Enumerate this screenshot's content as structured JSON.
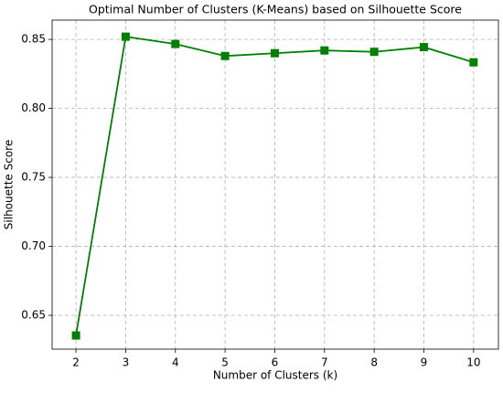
{
  "chart_data": {
    "type": "line",
    "title": "Optimal Number of Clusters (K-Means) based on Silhouette Score",
    "xlabel": "Number of Clusters (k)",
    "ylabel": "Silhouette Score",
    "x": [
      2,
      3,
      4,
      5,
      6,
      7,
      8,
      9,
      10
    ],
    "series": [
      {
        "name": "Silhouette Score",
        "color": "#008000",
        "values": [
          0.6354,
          0.852,
          0.8467,
          0.838,
          0.84,
          0.842,
          0.841,
          0.8444,
          0.8334
        ]
      }
    ],
    "xlim": [
      1.52,
      10.5
    ],
    "ylim": [
      0.6255,
      0.864
    ],
    "xticks": [
      2,
      3,
      4,
      5,
      6,
      7,
      8,
      9,
      10
    ],
    "yticks": [
      0.65,
      {
        "value": 0.7,
        "label": "0.70"
      },
      0.75,
      {
        "value": 0.8,
        "label": "0.80"
      },
      0.85
    ],
    "grid": true,
    "marker": "square"
  }
}
